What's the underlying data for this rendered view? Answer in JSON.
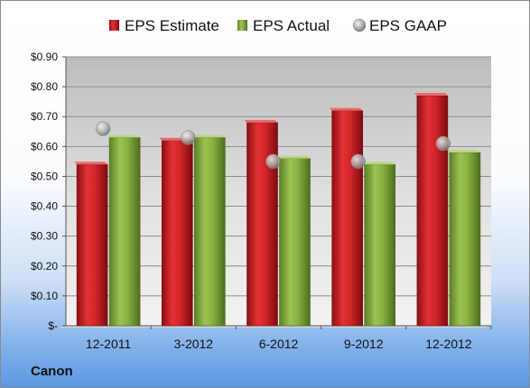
{
  "company_label": "Canon",
  "colors": {
    "estimate": "#cc1f22",
    "actual": "#7faa3a",
    "gaap": "#a9a9a9",
    "plot_top": "#bdbdbd",
    "plot_bottom": "#ececec"
  },
  "chart_data": {
    "type": "bar",
    "categories": [
      "12-2011",
      "3-2012",
      "6-2012",
      "9-2012",
      "12-2012"
    ],
    "series": [
      {
        "name": "EPS Estimate",
        "kind": "bar",
        "values": [
          0.54,
          0.62,
          0.68,
          0.72,
          0.77
        ]
      },
      {
        "name": "EPS Actual",
        "kind": "bar",
        "values": [
          0.63,
          0.63,
          0.56,
          0.54,
          0.58
        ]
      },
      {
        "name": "EPS GAAP",
        "kind": "marker",
        "values": [
          0.66,
          0.63,
          0.55,
          0.55,
          0.61
        ]
      }
    ],
    "ylim": [
      0,
      0.9
    ],
    "yticks": [
      0,
      0.1,
      0.2,
      0.3,
      0.4,
      0.5,
      0.6,
      0.7,
      0.8,
      0.9
    ],
    "ytick_labels": [
      "$-",
      "$0.10",
      "$0.20",
      "$0.30",
      "$0.40",
      "$0.50",
      "$0.60",
      "$0.70",
      "$0.80",
      "$0.90"
    ],
    "legend_position": "top",
    "grid": true
  }
}
